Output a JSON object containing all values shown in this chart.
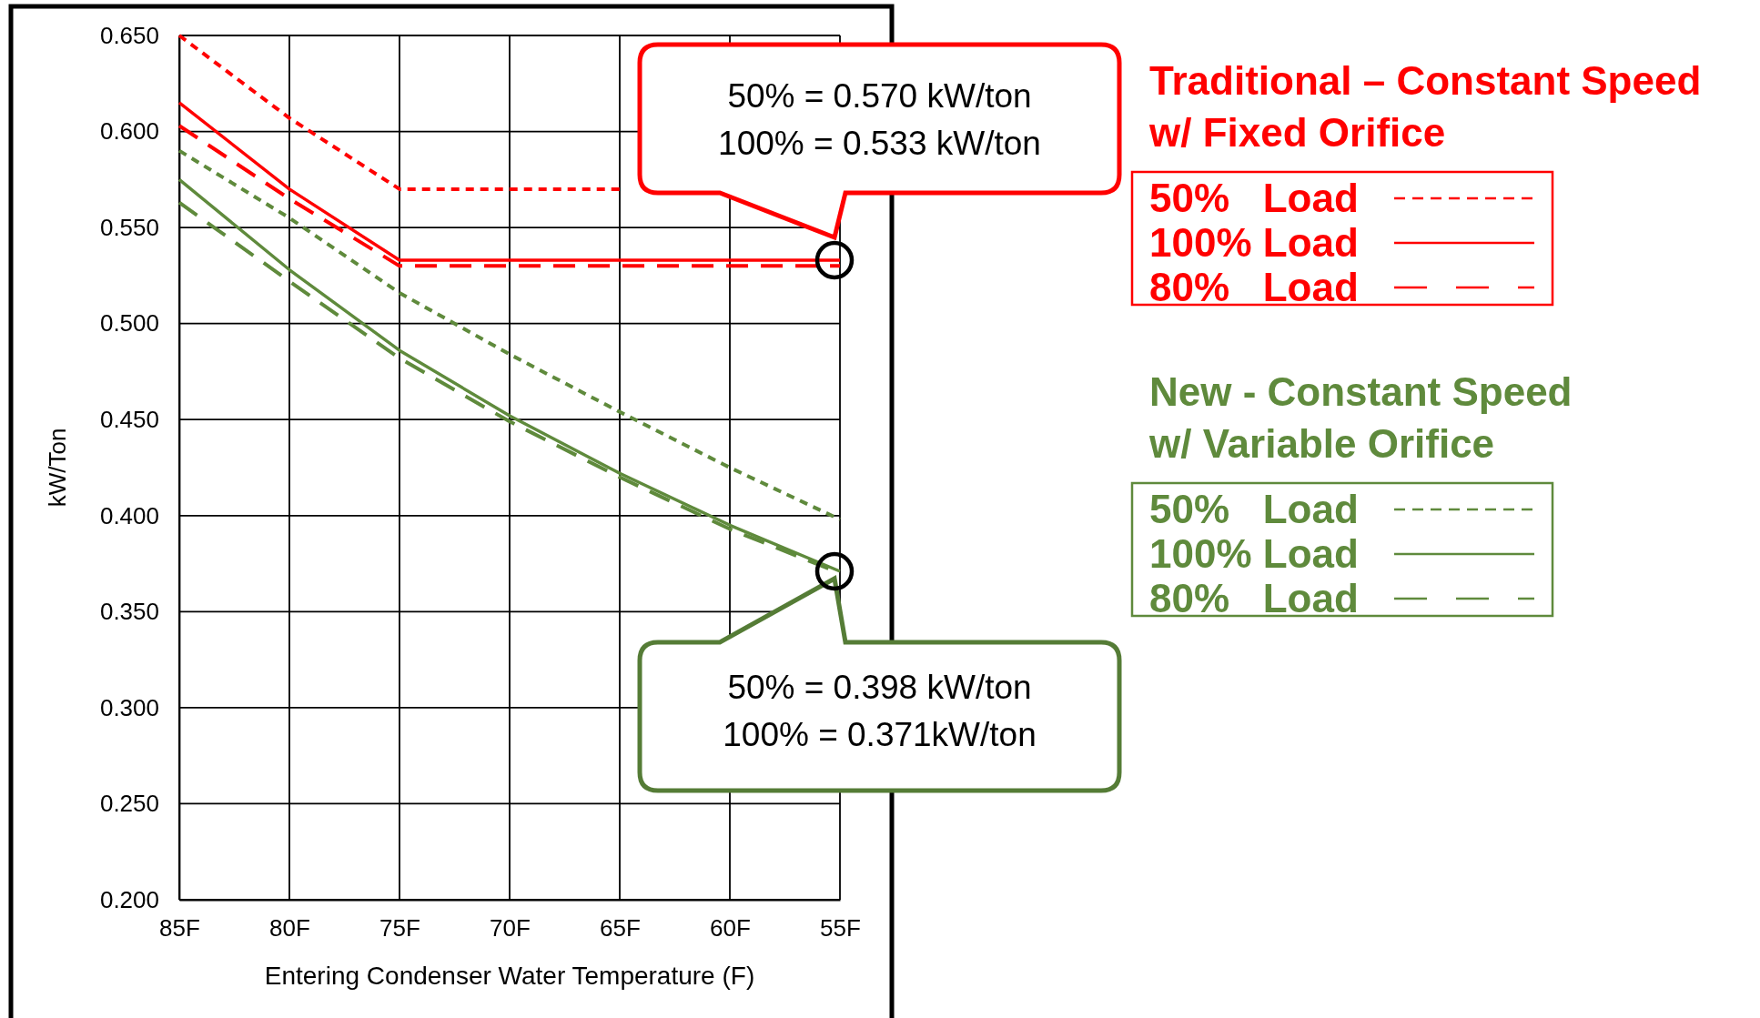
{
  "chart_data": {
    "type": "line",
    "xlabel": "Entering Condenser Water Temperature (F)",
    "ylabel": "kW/Ton",
    "categories": [
      "85F",
      "80F",
      "75F",
      "70F",
      "65F",
      "60F",
      "55F"
    ],
    "series": [
      {
        "name": "50%   Load",
        "color": "#ff0000",
        "line_style": "dashed",
        "values": [
          0.65,
          0.607,
          0.57,
          0.57,
          0.57,
          null,
          null
        ]
      },
      {
        "name": "100% Load",
        "color": "#ff0000",
        "line_style": "solid",
        "values": [
          0.615,
          0.57,
          0.533,
          0.533,
          0.533,
          0.533,
          0.533
        ]
      },
      {
        "name": "80%   Load",
        "color": "#ff0000",
        "line_style": "longdash",
        "values": [
          0.603,
          0.565,
          0.53,
          0.53,
          0.53,
          0.53,
          0.53
        ]
      },
      {
        "name": "50%   Load",
        "color": "#5f8a3c",
        "line_style": "dashed",
        "values": [
          0.59,
          0.555,
          0.516,
          0.484,
          0.454,
          0.425,
          0.398
        ]
      },
      {
        "name": "100% Load",
        "color": "#5f8a3c",
        "line_style": "solid",
        "values": [
          0.575,
          0.528,
          0.486,
          0.452,
          0.422,
          0.395,
          0.371
        ]
      },
      {
        "name": "80%   Load",
        "color": "#5f8a3c",
        "line_style": "longdash",
        "values": [
          0.563,
          0.522,
          0.482,
          0.449,
          0.42,
          0.393,
          0.37
        ]
      }
    ],
    "ylim": [
      0.2,
      0.65
    ],
    "yticks": [
      {
        "value": 0.2,
        "label": "0.200"
      },
      {
        "value": 0.25,
        "label": "0.250"
      },
      {
        "value": 0.3,
        "label": "0.300"
      },
      {
        "value": 0.35,
        "label": "0.350"
      },
      {
        "value": 0.4,
        "label": "0.400"
      },
      {
        "value": 0.45,
        "label": "0.450"
      },
      {
        "value": 0.5,
        "label": "0.500"
      },
      {
        "value": 0.55,
        "label": "0.550"
      },
      {
        "value": 0.6,
        "label": "0.600"
      },
      {
        "value": 0.65,
        "label": "0.650"
      }
    ],
    "grid": true,
    "legend": "right",
    "marker": "none",
    "annotations": [
      {
        "text": "50% = 0.570 kW/ton\n100% = 0.533 kW/ton",
        "x": "55F",
        "y": 0.533
      },
      {
        "text": "50% = 0.398 kW/ton\n100% = 0.371kW/ton",
        "x": "55F",
        "y": 0.371
      },
      "Traditional – Constant Speed\nw/ Fixed Orifice",
      "New - Constant Speed\nw/ Variable Orifice"
    ]
  }
}
